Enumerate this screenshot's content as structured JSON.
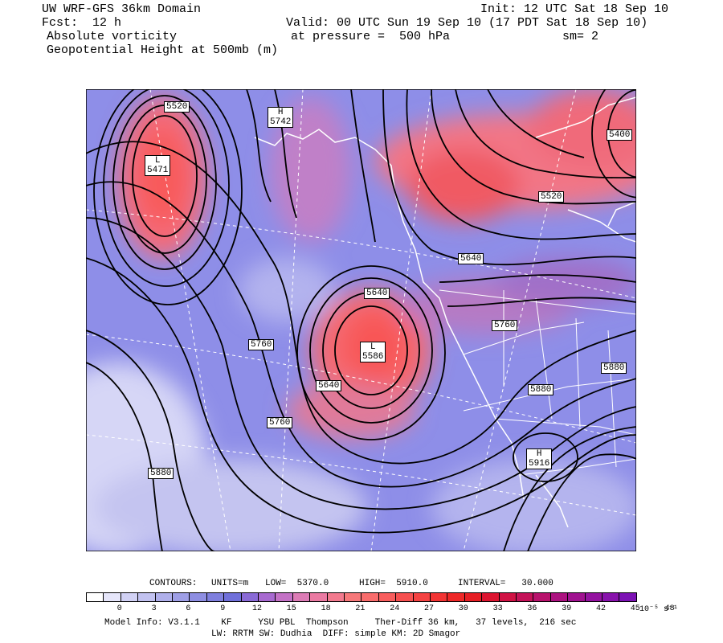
{
  "header": {
    "line1_left": "UW WRF-GFS 36km Domain",
    "line1_right": "Init: 12 UTC Sat 18 Sep 10",
    "line2_left": "Fcst:  12 h",
    "line2_right": "Valid: 00 UTC Sun 19 Sep 10 (17 PDT Sat 18 Sep 10)",
    "line3_left": "Absolute vorticity",
    "line3_mid": "at pressure =  500 hPa",
    "line3_right": "sm= 2",
    "line4_left": "Geopotential Height at 500mb (m)"
  },
  "map_labels": [
    {
      "id": "l5520a",
      "text": "5520"
    },
    {
      "id": "h5742",
      "text": "H\n5742"
    },
    {
      "id": "l5471",
      "text": "L\n5471"
    },
    {
      "id": "l5400",
      "text": "5400"
    },
    {
      "id": "l5520b",
      "text": "5520"
    },
    {
      "id": "l5640a",
      "text": "5640"
    },
    {
      "id": "l5640b",
      "text": "5640"
    },
    {
      "id": "l5586",
      "text": "L\n5586"
    },
    {
      "id": "l5760a",
      "text": "5760"
    },
    {
      "id": "l5760b",
      "text": "5760"
    },
    {
      "id": "l5640c",
      "text": "5640"
    },
    {
      "id": "l5760c",
      "text": "5760"
    },
    {
      "id": "l5880a",
      "text": "5880"
    },
    {
      "id": "l5880b",
      "text": "5880"
    },
    {
      "id": "h5916",
      "text": "H\n5916"
    },
    {
      "id": "l5880c",
      "text": "5880"
    }
  ],
  "contour_info": {
    "label": "CONTOURS:",
    "units": "UNITS=m",
    "low": "LOW=  5370.0",
    "high": "HIGH=  5910.0",
    "interval": "INTERVAL=   30.000"
  },
  "colorbar": {
    "ticks": [
      "0",
      "3",
      "6",
      "9",
      "12",
      "15",
      "18",
      "21",
      "24",
      "27",
      "30",
      "33",
      "36",
      "39",
      "42",
      "45",
      "48"
    ],
    "units": "10⁻⁵ s⁻¹",
    "colors": [
      "#ffffff",
      "#e6e6fa",
      "#d2d2f5",
      "#c2c2f0",
      "#b0b0eb",
      "#9f9fe6",
      "#8e8ee2",
      "#7f7fde",
      "#7070da",
      "#8a6ad6",
      "#a86ad0",
      "#c472c6",
      "#dc7cb6",
      "#ea7aa2",
      "#f27a8e",
      "#f6787a",
      "#f86c6c",
      "#f85e5e",
      "#f65050",
      "#f44242",
      "#f23434",
      "#ee2828",
      "#e61e24",
      "#dc1430",
      "#d01244",
      "#c41258",
      "#b8126c",
      "#ac1280",
      "#a01290",
      "#9412a0",
      "#8812ac",
      "#7c12b4"
    ]
  },
  "model_info": {
    "line1": "Model Info: V3.1.1    KF     YSU PBL  Thompson     Ther-Diff 36 km,   37 levels,  216 sec",
    "line2": "LW: RRTM SW: Dudhia  DIFF: simple KM: 2D Smagor"
  }
}
